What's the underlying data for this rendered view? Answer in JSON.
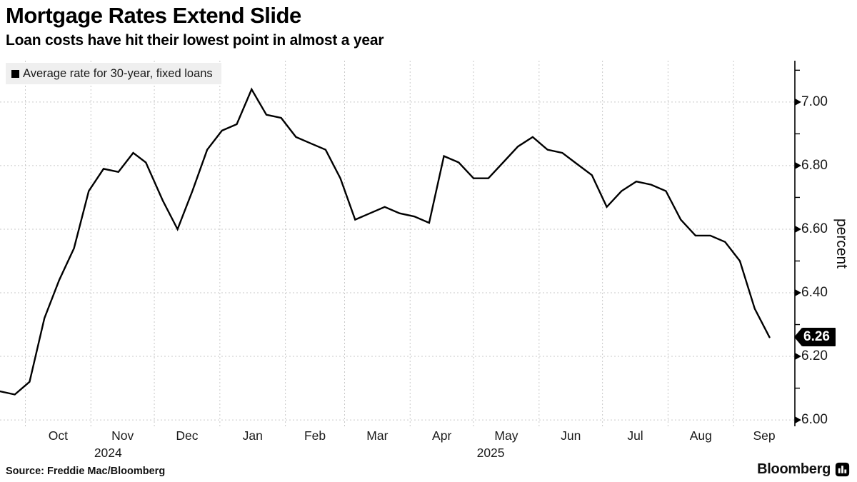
{
  "header": {
    "title": "Mortgage Rates Extend Slide",
    "subtitle": "Loan costs have hit their lowest point in almost a year"
  },
  "legend": {
    "label": "Average rate for 30-year, fixed loans",
    "swatch_color": "#000000"
  },
  "footer": {
    "source": "Source: Freddie Mac/Bloomberg",
    "brand": "Bloomberg"
  },
  "chart_data": {
    "type": "line",
    "title": "Mortgage Rates Extend Slide",
    "subtitle": "Loan costs have hit their lowest point in almost a year",
    "ylabel": "percent",
    "xlabel": "",
    "grid": true,
    "legend_position": "top-left",
    "line_color": "#000000",
    "grid_color": "#c9c9c9",
    "ylim": [
      5.98,
      7.13
    ],
    "yticks": [
      6.0,
      6.2,
      6.4,
      6.6,
      6.8,
      7.0
    ],
    "ytick_labels": [
      "6.00",
      "6.20",
      "6.40",
      "6.60",
      "6.80",
      "7.00"
    ],
    "minor_yticks": [
      6.1,
      6.3,
      6.5,
      6.7,
      6.9,
      7.1
    ],
    "xlim": [
      "2024-09-19",
      "2025-09-30"
    ],
    "month_labels": [
      {
        "label": "Oct",
        "start": "2024-10-01"
      },
      {
        "label": "Nov",
        "start": "2024-11-01"
      },
      {
        "label": "Dec",
        "start": "2024-12-01"
      },
      {
        "label": "Jan",
        "start": "2025-01-01"
      },
      {
        "label": "Feb",
        "start": "2025-02-01"
      },
      {
        "label": "Mar",
        "start": "2025-03-01"
      },
      {
        "label": "Apr",
        "start": "2025-04-01"
      },
      {
        "label": "May",
        "start": "2025-05-01"
      },
      {
        "label": "Jun",
        "start": "2025-06-01"
      },
      {
        "label": "Jul",
        "start": "2025-07-01"
      },
      {
        "label": "Aug",
        "start": "2025-08-01"
      },
      {
        "label": "Sep",
        "start": "2025-09-01"
      }
    ],
    "year_labels": [
      {
        "label": "2024",
        "anchor": "2024-11-01"
      },
      {
        "label": "2025",
        "anchor": "2025-05-01"
      }
    ],
    "series": [
      {
        "name": "Average rate for 30-year, fixed loans",
        "color": "#000000",
        "points": [
          [
            "2024-09-19",
            6.09
          ],
          [
            "2024-09-26",
            6.08
          ],
          [
            "2024-10-03",
            6.12
          ],
          [
            "2024-10-10",
            6.32
          ],
          [
            "2024-10-17",
            6.44
          ],
          [
            "2024-10-24",
            6.54
          ],
          [
            "2024-10-31",
            6.72
          ],
          [
            "2024-11-07",
            6.79
          ],
          [
            "2024-11-14",
            6.78
          ],
          [
            "2024-11-21",
            6.84
          ],
          [
            "2024-11-27",
            6.81
          ],
          [
            "2024-12-05",
            6.69
          ],
          [
            "2024-12-12",
            6.6
          ],
          [
            "2024-12-19",
            6.72
          ],
          [
            "2024-12-26",
            6.85
          ],
          [
            "2025-01-02",
            6.91
          ],
          [
            "2025-01-09",
            6.93
          ],
          [
            "2025-01-16",
            7.04
          ],
          [
            "2025-01-23",
            6.96
          ],
          [
            "2025-01-30",
            6.95
          ],
          [
            "2025-02-06",
            6.89
          ],
          [
            "2025-02-13",
            6.87
          ],
          [
            "2025-02-20",
            6.85
          ],
          [
            "2025-02-27",
            6.76
          ],
          [
            "2025-03-06",
            6.63
          ],
          [
            "2025-03-13",
            6.65
          ],
          [
            "2025-03-20",
            6.67
          ],
          [
            "2025-03-27",
            6.65
          ],
          [
            "2025-04-03",
            6.64
          ],
          [
            "2025-04-10",
            6.62
          ],
          [
            "2025-04-17",
            6.83
          ],
          [
            "2025-04-24",
            6.81
          ],
          [
            "2025-05-01",
            6.76
          ],
          [
            "2025-05-08",
            6.76
          ],
          [
            "2025-05-15",
            6.81
          ],
          [
            "2025-05-22",
            6.86
          ],
          [
            "2025-05-29",
            6.89
          ],
          [
            "2025-06-05",
            6.85
          ],
          [
            "2025-06-12",
            6.84
          ],
          [
            "2025-06-18",
            6.81
          ],
          [
            "2025-06-26",
            6.77
          ],
          [
            "2025-07-03",
            6.67
          ],
          [
            "2025-07-10",
            6.72
          ],
          [
            "2025-07-17",
            6.75
          ],
          [
            "2025-07-24",
            6.74
          ],
          [
            "2025-07-31",
            6.72
          ],
          [
            "2025-08-07",
            6.63
          ],
          [
            "2025-08-14",
            6.58
          ],
          [
            "2025-08-21",
            6.58
          ],
          [
            "2025-08-28",
            6.56
          ],
          [
            "2025-09-04",
            6.5
          ],
          [
            "2025-09-11",
            6.35
          ],
          [
            "2025-09-18",
            6.26
          ]
        ]
      }
    ],
    "last_value_label": "6.26"
  }
}
